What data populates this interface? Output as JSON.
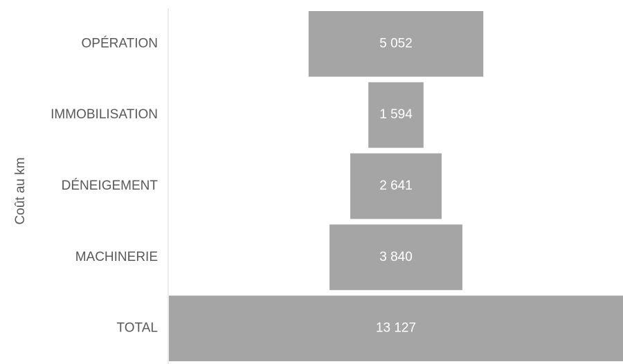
{
  "chart_data": {
    "type": "bar",
    "orientation": "horizontal-funnel",
    "ylabel": "Coût au km",
    "categories": [
      "OPÉRATION",
      "IMMOBILISATION",
      "DÉNEIGEMENT",
      "MACHINERIE",
      "TOTAL"
    ],
    "values": [
      5052,
      1594,
      2641,
      3840,
      13127
    ],
    "value_labels": [
      "5 052",
      "1 594",
      "2 641",
      "3 840",
      "13 127"
    ],
    "xlim": [
      0,
      13127
    ],
    "grid": false,
    "legend": "none",
    "bar_color": "#a5a5a5",
    "label_color": "#ffffff",
    "text_color": "#595959",
    "axis_color": "#d9d9d9"
  }
}
